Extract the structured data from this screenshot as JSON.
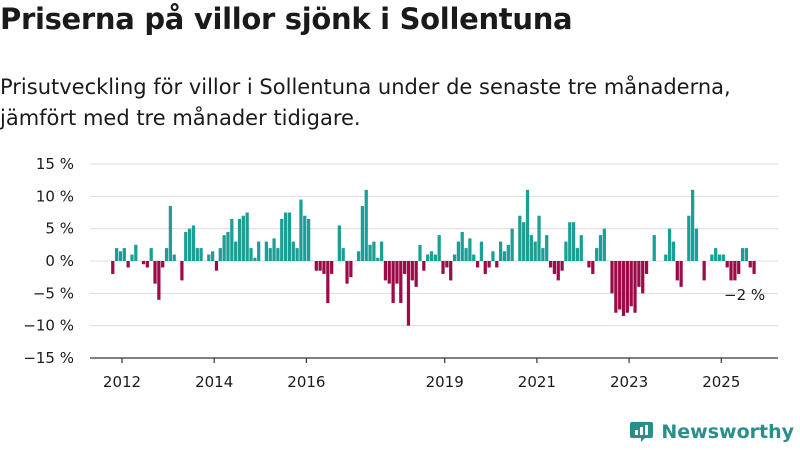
{
  "title": "Priserna på villor sjönk i Sollentuna",
  "subtitle": "Prisutveckling för villor i Sollentuna under de senaste tre månaderna, jämfört med tre månader tidigare.",
  "brand": "Newsworthy",
  "colors": {
    "positive": "#1a9e96",
    "negative": "#9c0b48",
    "grid": "#dcdcdc",
    "axis": "#333333",
    "brand": "#2a8f8b"
  },
  "chart_data": {
    "type": "bar",
    "ylim": [
      -15,
      15
    ],
    "yticks": [
      15,
      10,
      5,
      0,
      -5,
      -10,
      -15
    ],
    "ytick_labels": [
      "15 %",
      "10 %",
      "5 %",
      "0 %",
      "−5 %",
      "−10 %",
      "−15 %"
    ],
    "grid": true,
    "x_start": 2011.8,
    "x_step": 0.0833,
    "xticks": [
      2012,
      2014,
      2016,
      2019,
      2021,
      2023,
      2025
    ],
    "xtick_labels": [
      "2012",
      "2014",
      "2016",
      "2019",
      "2021",
      "2023",
      "2025"
    ],
    "last_value_label": "−2 %",
    "values": [
      -2,
      2,
      1.5,
      2,
      -1,
      1,
      2.5,
      0,
      -0.5,
      -1,
      2,
      -3.5,
      -6,
      -1,
      2,
      8.5,
      1,
      0,
      -3,
      4.5,
      5,
      5.5,
      2,
      2,
      0,
      1,
      1.5,
      -1.5,
      2,
      4,
      4.5,
      6.5,
      3,
      6.5,
      7,
      7.5,
      2,
      0.5,
      3,
      0,
      3,
      2,
      3.5,
      2,
      6.5,
      7.5,
      7.5,
      3,
      2,
      9.5,
      7,
      6.5,
      0,
      -1.5,
      -1.5,
      -2,
      -6.5,
      -2,
      0,
      5.5,
      2,
      -3.5,
      -2.5,
      0,
      1.5,
      8.5,
      11,
      2.5,
      3,
      0.5,
      3,
      -3,
      -3.5,
      -6.5,
      -3.5,
      -6.5,
      -2,
      -10,
      -3,
      -4,
      2.5,
      -1.5,
      1,
      1.5,
      1,
      4,
      -2,
      -1,
      -3,
      1,
      3,
      4.5,
      2,
      3.5,
      1,
      -1,
      3,
      -2,
      -1,
      1.5,
      -1,
      3,
      1.5,
      2.5,
      5,
      0,
      7,
      6,
      11,
      4,
      3,
      7,
      2,
      4,
      -1,
      -2,
      -3,
      -1.5,
      3,
      6,
      6,
      2,
      4,
      0,
      -1,
      -2,
      2,
      4,
      5,
      0,
      -5,
      -8,
      -7.5,
      -8.5,
      -8,
      -7,
      -8,
      -4,
      -5,
      -2,
      0,
      4,
      0,
      0,
      1,
      5,
      3,
      -3,
      -4,
      0,
      7,
      11,
      5,
      0,
      -3,
      0,
      1,
      2,
      1,
      1,
      -1,
      -3,
      -3,
      -2,
      2,
      2,
      -1,
      -2
    ]
  }
}
